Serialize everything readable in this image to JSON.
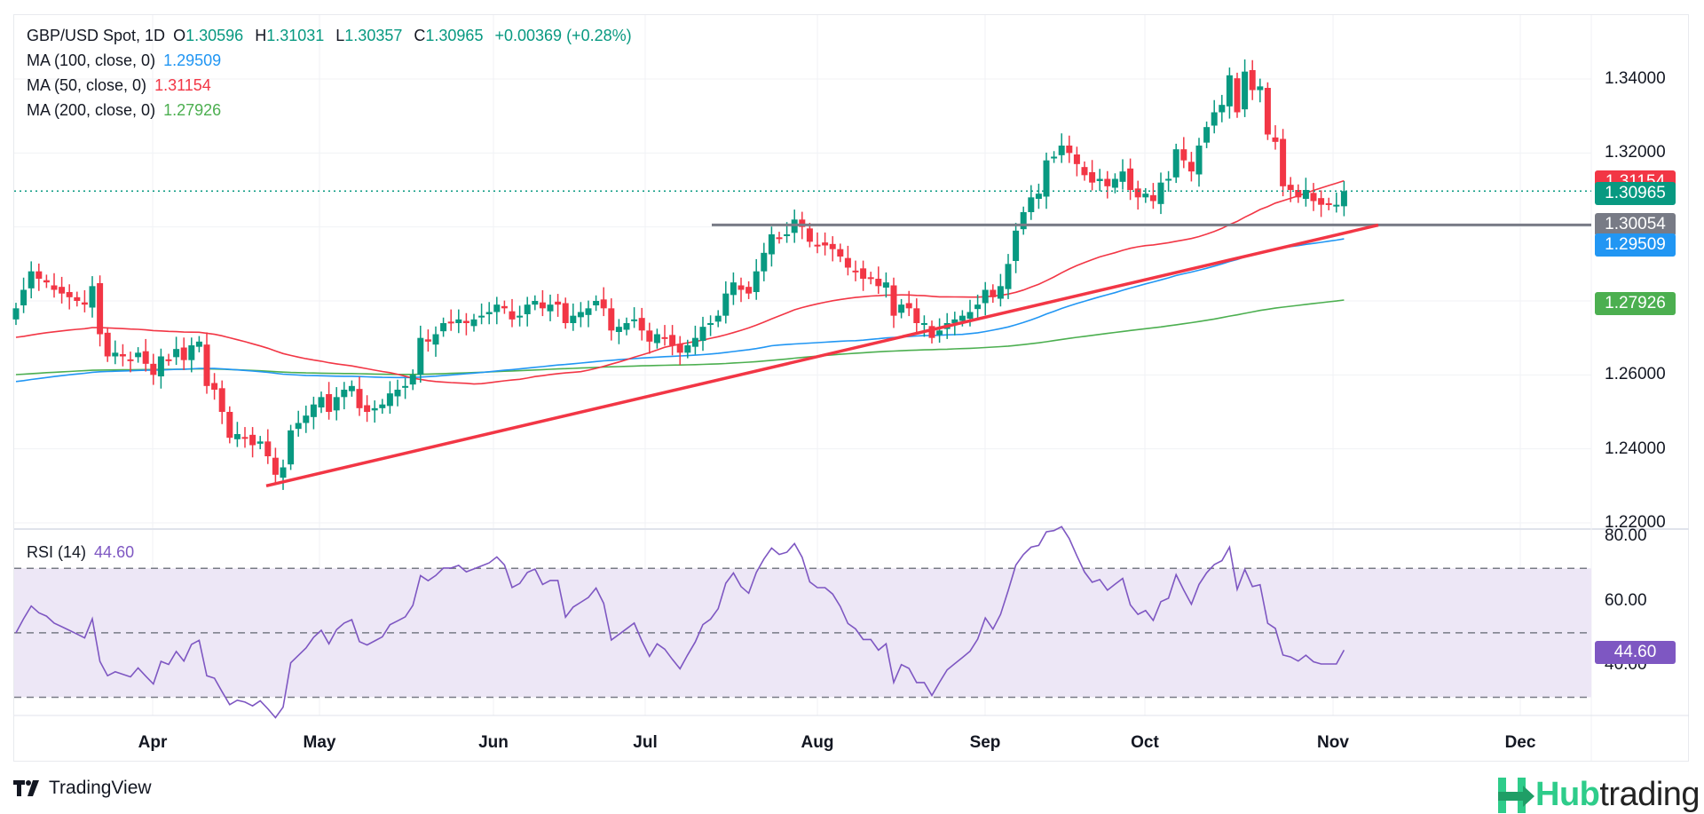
{
  "header": {
    "symbol": "GBP/USD Spot, 1D",
    "open_label": "O",
    "open": "1.30596",
    "high_label": "H",
    "high": "1.31031",
    "low_label": "L",
    "low": "1.30357",
    "close_label": "C",
    "close": "1.30965",
    "change": "+0.00369 (+0.28%)"
  },
  "indicators": [
    {
      "label": "MA (100, close, 0)",
      "value": "1.29509",
      "color": "#2196f3"
    },
    {
      "label": "MA (50, close, 0)",
      "value": "1.31154",
      "color": "#f23645"
    },
    {
      "label": "MA (200, close, 0)",
      "value": "1.27926",
      "color": "#4caf50"
    }
  ],
  "rsi": {
    "label": "RSI (14)",
    "value": "44.60",
    "color": "#7e57c2"
  },
  "price_tags": [
    {
      "value": "1.31154",
      "color": "#f23645",
      "name": "ma50-price-tag"
    },
    {
      "value": "1.30965",
      "color": "#089981",
      "name": "last-price-tag"
    },
    {
      "value": "1.30054",
      "color": "#787b86",
      "name": "horizontal-line-price-tag"
    },
    {
      "value": "1.29509",
      "color": "#2196f3",
      "name": "ma100-price-tag"
    },
    {
      "value": "1.27926",
      "color": "#4caf50",
      "name": "ma200-price-tag"
    }
  ],
  "rsi_tag": {
    "value": "44.60",
    "color": "#7e57c2"
  },
  "branding": {
    "tradingview": "TradingView",
    "hub_a": "Hub",
    "hub_b": "trading"
  },
  "colors": {
    "up": "#089981",
    "down": "#f23645",
    "trendline": "#f23645",
    "hline": "#787b86",
    "rsi_band": "#ede7f6"
  },
  "chart_data": {
    "type": "candlestick",
    "title": "GBP/USD Spot, 1D",
    "price_axis": {
      "ticks": [
        "1.34000",
        "1.32000",
        "1.30000",
        "1.28000",
        "1.26000",
        "1.24000",
        "1.22000"
      ],
      "range": [
        1.218,
        1.347
      ]
    },
    "rsi_axis": {
      "ticks": [
        "80.00",
        "60.00",
        "40.00"
      ],
      "range": [
        25,
        82
      ],
      "bands": [
        30,
        50,
        70
      ]
    },
    "x_ticks": [
      "Apr",
      "May",
      "Jun",
      "Jul",
      "Aug",
      "Sep",
      "Oct",
      "Nov",
      "Dec"
    ],
    "closes": [
      1.278,
      1.283,
      1.288,
      1.286,
      1.285,
      1.283,
      1.282,
      1.281,
      1.28,
      1.279,
      1.284,
      1.271,
      1.265,
      1.266,
      1.265,
      1.264,
      1.266,
      1.263,
      1.26,
      1.265,
      1.264,
      1.267,
      1.264,
      1.268,
      1.269,
      1.257,
      1.256,
      1.25,
      1.243,
      1.244,
      1.243,
      1.241,
      1.242,
      1.238,
      1.233,
      1.235,
      1.245,
      1.247,
      1.249,
      1.252,
      1.254,
      1.25,
      1.254,
      1.256,
      1.257,
      1.251,
      1.25,
      1.251,
      1.252,
      1.255,
      1.256,
      1.257,
      1.26,
      1.27,
      1.269,
      1.271,
      1.274,
      1.274,
      1.275,
      1.274,
      1.275,
      1.276,
      1.277,
      1.279,
      1.278,
      1.275,
      1.276,
      1.279,
      1.28,
      1.278,
      1.279,
      1.279,
      1.274,
      1.276,
      1.277,
      1.278,
      1.28,
      1.278,
      1.272,
      1.273,
      1.274,
      1.275,
      1.272,
      1.269,
      1.271,
      1.27,
      1.268,
      1.266,
      1.268,
      1.27,
      1.273,
      1.274,
      1.276,
      1.282,
      1.285,
      1.283,
      1.282,
      1.288,
      1.293,
      1.298,
      1.297,
      1.298,
      1.302,
      1.3,
      1.296,
      1.295,
      1.295,
      1.294,
      1.292,
      1.289,
      1.288,
      1.286,
      1.286,
      1.284,
      1.285,
      1.276,
      1.279,
      1.278,
      1.274,
      1.274,
      1.27,
      1.272,
      1.274,
      1.275,
      1.276,
      1.277,
      1.279,
      1.283,
      1.281,
      1.284,
      1.29,
      1.299,
      1.304,
      1.308,
      1.309,
      1.318,
      1.319,
      1.322,
      1.32,
      1.317,
      1.314,
      1.312,
      1.313,
      1.311,
      1.313,
      1.315,
      1.31,
      1.308,
      1.309,
      1.307,
      1.312,
      1.313,
      1.321,
      1.318,
      1.315,
      1.322,
      1.327,
      1.331,
      1.333,
      1.341,
      1.331,
      1.342,
      1.337,
      1.338,
      1.325,
      1.323,
      1.311,
      1.31,
      1.308,
      1.31,
      1.307,
      1.306,
      1.306,
      1.306,
      1.3097
    ],
    "ma50_last": 1.31154,
    "ma100_last": 1.29509,
    "ma200_last": 1.27926,
    "horizontal_line": 1.30054,
    "trendline": {
      "from_price": 1.23,
      "to_price": 1.3005
    },
    "rsi_last": 44.6
  }
}
